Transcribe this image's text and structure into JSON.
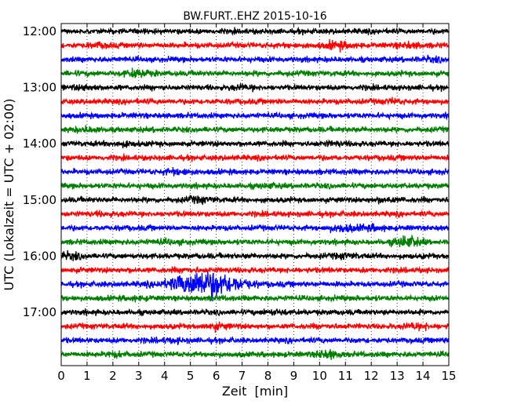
{
  "chart_data": {
    "type": "line",
    "title": "BW.FURT..EHZ 2015-10-16",
    "xlabel": "Zeit  [min]",
    "ylabel": "UTC (Lokalzeit = UTC + 02:00)",
    "xlim": [
      0,
      15
    ],
    "x_ticks": [
      "0",
      "1",
      "2",
      "3",
      "4",
      "5",
      "6",
      "7",
      "8",
      "9",
      "10",
      "11",
      "12",
      "13",
      "14",
      "15"
    ],
    "y_ticks": [
      "12:00",
      "13:00",
      "14:00",
      "15:00",
      "16:00",
      "17:00"
    ],
    "grid": "vertical dotted",
    "colors": [
      "#000000",
      "#ff0000",
      "#0000ff",
      "#008000"
    ],
    "traces": [
      {
        "start": "12:00",
        "events": []
      },
      {
        "start": "12:15",
        "events": [
          {
            "t": 1.5,
            "a": 1.5
          },
          {
            "t": 10.7,
            "a": 2.0
          },
          {
            "t": 13.5,
            "a": 1.6
          }
        ]
      },
      {
        "start": "12:30",
        "events": [
          {
            "t": 14.3,
            "a": 1.4
          }
        ]
      },
      {
        "start": "12:45",
        "events": [
          {
            "t": 3.0,
            "a": 2.0
          }
        ]
      },
      {
        "start": "13:00",
        "events": [
          {
            "t": 1.0,
            "a": 1.5
          },
          {
            "t": 7.0,
            "a": 1.4
          }
        ]
      },
      {
        "start": "13:15",
        "events": [
          {
            "t": 12.8,
            "a": 1.4
          }
        ]
      },
      {
        "start": "13:30",
        "events": []
      },
      {
        "start": "13:45",
        "events": [
          {
            "t": 1.0,
            "a": 1.5
          }
        ]
      },
      {
        "start": "14:00",
        "events": [
          {
            "t": 2.4,
            "a": 1.6
          },
          {
            "t": 10.5,
            "a": 1.3
          }
        ]
      },
      {
        "start": "14:15",
        "events": []
      },
      {
        "start": "14:30",
        "events": [
          {
            "t": 4.5,
            "a": 1.6
          }
        ]
      },
      {
        "start": "14:45",
        "events": [
          {
            "t": 8.0,
            "a": 1.3
          }
        ]
      },
      {
        "start": "15:00",
        "events": [
          {
            "t": 5.3,
            "a": 1.7
          },
          {
            "t": 12.5,
            "a": 1.5
          }
        ]
      },
      {
        "start": "15:15",
        "events": [
          {
            "t": 1.7,
            "a": 1.3
          }
        ]
      },
      {
        "start": "15:30",
        "events": [
          {
            "t": 10.9,
            "a": 1.9
          },
          {
            "t": 12.0,
            "a": 1.6
          }
        ]
      },
      {
        "start": "15:45",
        "events": [
          {
            "t": 13.4,
            "a": 2.6
          },
          {
            "t": 4.0,
            "a": 1.4
          }
        ]
      },
      {
        "start": "16:00",
        "events": [
          {
            "t": 0.3,
            "a": 1.8
          },
          {
            "t": 11.0,
            "a": 1.5
          }
        ]
      },
      {
        "start": "16:15",
        "events": [
          {
            "t": 5.0,
            "a": 1.3
          }
        ]
      },
      {
        "start": "16:30",
        "events": [
          {
            "t": 5.6,
            "a": 5.5
          }
        ]
      },
      {
        "start": "16:45",
        "events": [
          {
            "t": 3.0,
            "a": 1.3
          }
        ]
      },
      {
        "start": "17:00",
        "events": [
          {
            "t": 8.3,
            "a": 1.4
          }
        ]
      },
      {
        "start": "17:15",
        "events": [
          {
            "t": 6.0,
            "a": 1.6
          },
          {
            "t": 13.8,
            "a": 1.6
          }
        ]
      },
      {
        "start": "17:30",
        "events": [
          {
            "t": 4.3,
            "a": 1.4
          }
        ]
      },
      {
        "start": "17:45",
        "events": [
          {
            "t": 2.1,
            "a": 1.5
          },
          {
            "t": 10.3,
            "a": 2.0
          }
        ]
      }
    ]
  }
}
